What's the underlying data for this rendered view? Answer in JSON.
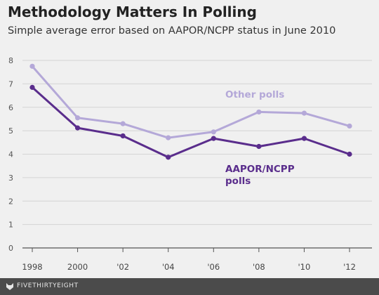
{
  "header": {
    "title": "Methodology Matters In Polling",
    "subtitle": "Simple average error based on AAPOR/NCPP status in June 2010"
  },
  "chart_data": {
    "type": "line",
    "categories": [
      "1998",
      "2000",
      "'02",
      "'04",
      "'06",
      "'08",
      "'10",
      "'12"
    ],
    "series": [
      {
        "name": "Other polls",
        "color": "#b4a8d8",
        "values": [
          7.75,
          5.55,
          5.3,
          4.7,
          4.95,
          5.8,
          5.75,
          5.2
        ]
      },
      {
        "name": "AAPOR/NCPP polls",
        "color": "#5a2d8c",
        "values": [
          6.85,
          5.12,
          4.78,
          3.87,
          4.67,
          4.33,
          4.67,
          4.0
        ]
      }
    ],
    "labels": {
      "other": "Other polls",
      "aapor_line1": "AAPOR/NCPP",
      "aapor_line2": "polls"
    },
    "yticks": [
      0,
      1,
      2,
      3,
      4,
      5,
      6,
      7,
      8
    ],
    "ylim": [
      0,
      8
    ],
    "grid": true,
    "xlabel": "",
    "ylabel": ""
  },
  "footer": {
    "brand": "FIVETHIRTYEIGHT",
    "logo_icon": "fox-icon"
  }
}
